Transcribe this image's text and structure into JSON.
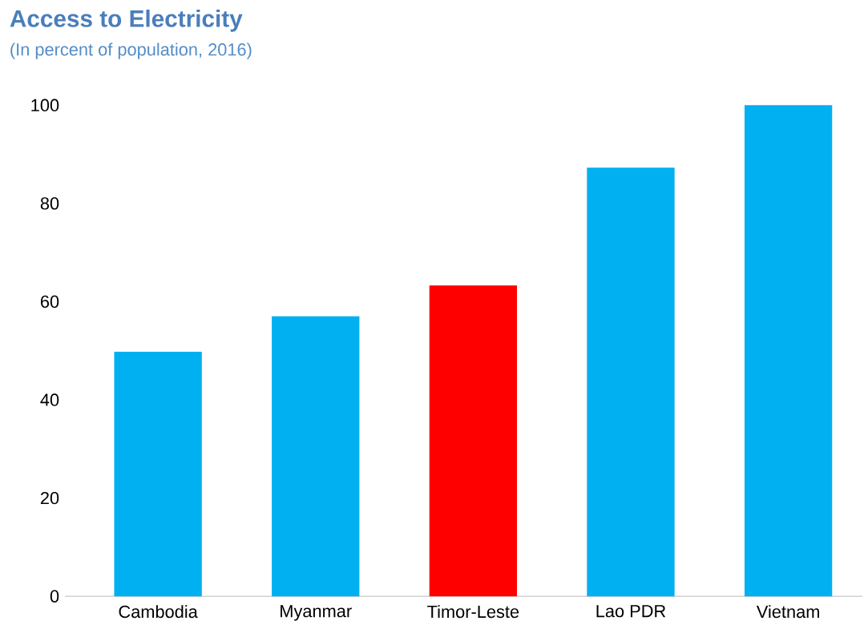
{
  "chart_data": {
    "type": "bar",
    "title": "Access to Electricity",
    "subtitle": "(In percent of population, 2016)",
    "categories": [
      "Cambodia",
      "Myanmar",
      "Timor-Leste",
      "Lao PDR",
      "Vietnam"
    ],
    "values": [
      49.8,
      57,
      63.3,
      87.3,
      100
    ],
    "colors": [
      "#00b0f0",
      "#00b0f0",
      "#ff0000",
      "#00b0f0",
      "#00b0f0"
    ],
    "ylim": [
      0,
      100
    ],
    "yticks": [
      0,
      20,
      40,
      60,
      80,
      100
    ],
    "grid": false
  }
}
